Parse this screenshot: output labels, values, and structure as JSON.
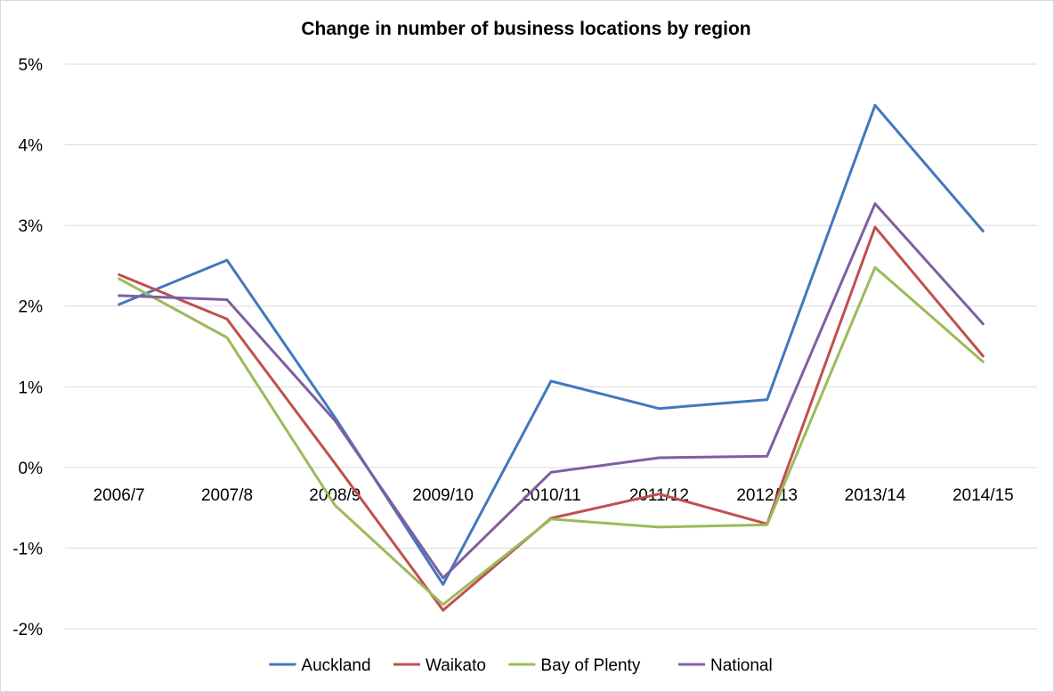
{
  "chart_data": {
    "type": "line",
    "title": "Change in number of business locations by region",
    "xlabel": "",
    "ylabel": "",
    "categories": [
      "2006/7",
      "2007/8",
      "2008/9",
      "2009/10",
      "2010/11",
      "2011/12",
      "2012/13",
      "2013/14",
      "2014/15"
    ],
    "y_tick_labels": [
      "5%",
      "4%",
      "3%",
      "2%",
      "1%",
      "0%",
      "-1%",
      "-2%"
    ],
    "y_ticks": [
      5,
      4,
      3,
      2,
      1,
      0,
      -1,
      -2
    ],
    "ylim": [
      -2,
      5
    ],
    "grid": true,
    "legend_position": "bottom",
    "series": [
      {
        "name": "Auckland",
        "color": "#4178be",
        "values": [
          2.02,
          2.57,
          0.62,
          -1.45,
          1.07,
          0.73,
          0.84,
          4.49,
          2.93
        ]
      },
      {
        "name": "Waikato",
        "color": "#c0504d",
        "values": [
          2.39,
          1.84,
          0.05,
          -1.77,
          -0.63,
          -0.33,
          -0.7,
          2.98,
          1.38
        ]
      },
      {
        "name": "Bay of Plenty",
        "color": "#9bbb59",
        "values": [
          2.34,
          1.61,
          -0.47,
          -1.7,
          -0.64,
          -0.74,
          -0.71,
          2.48,
          1.31
        ]
      },
      {
        "name": "National",
        "color": "#7f5fa0",
        "values": [
          2.13,
          2.08,
          0.58,
          -1.37,
          -0.06,
          0.12,
          0.14,
          3.27,
          1.78
        ]
      }
    ]
  }
}
